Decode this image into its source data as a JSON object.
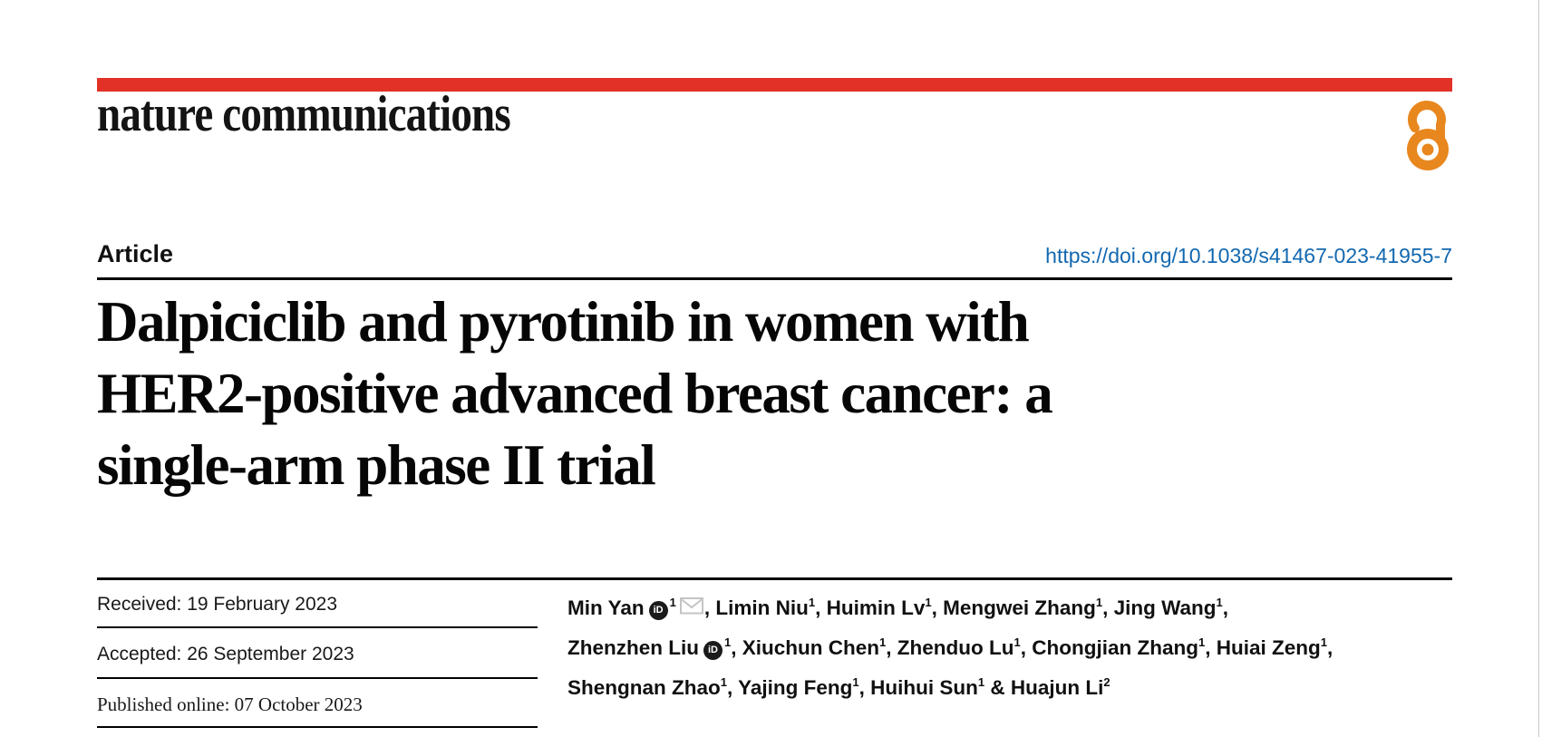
{
  "colors": {
    "brand_red": "#e23227",
    "oa_orange": "#e8871e",
    "link_blue": "#1268b0",
    "rule_black": "#000000"
  },
  "masthead": {
    "journal_name": "nature communications"
  },
  "article_header": {
    "type_label": "Article",
    "doi_url": "https://doi.org/10.1038/s41467-023-41955-7"
  },
  "title_lines": [
    "Dalpiciclib and pyrotinib in women with",
    "HER2-positive advanced breast cancer: a",
    "single-arm phase II trial"
  ],
  "dates": [
    {
      "text": "Received: 19 February 2023",
      "style": "sans"
    },
    {
      "text": "Accepted: 26 September 2023",
      "style": "sans"
    },
    {
      "text": "Published online: 07 October 2023",
      "style": "serif"
    }
  ],
  "authors": [
    {
      "name": "Min Yan",
      "sup": "1",
      "orcid": true,
      "email": true,
      "trail": ", "
    },
    {
      "name": "Limin Niu",
      "sup": "1",
      "trail": ", "
    },
    {
      "name": "Huimin Lv",
      "sup": "1",
      "trail": ", "
    },
    {
      "name": "Mengwei Zhang",
      "sup": "1",
      "trail": ", "
    },
    {
      "name": "Jing Wang",
      "sup": "1",
      "trail": ",",
      "break_after": true
    },
    {
      "name": "Zhenzhen Liu",
      "sup": "1",
      "orcid": true,
      "trail": ", "
    },
    {
      "name": "Xiuchun Chen",
      "sup": "1",
      "trail": ", "
    },
    {
      "name": "Zhenduo Lu",
      "sup": "1",
      "trail": ", "
    },
    {
      "name": "Chongjian Zhang",
      "sup": "1",
      "trail": ", "
    },
    {
      "name": "Huiai Zeng",
      "sup": "1",
      "trail": ",",
      "break_after": true
    },
    {
      "name": "Shengnan Zhao",
      "sup": "1",
      "trail": ", "
    },
    {
      "name": "Yajing Feng",
      "sup": "1",
      "trail": ", "
    },
    {
      "name": "Huihui Sun",
      "sup": "1",
      "trail": " & "
    },
    {
      "name": "Huajun Li",
      "sup": "2",
      "trail": ""
    }
  ]
}
